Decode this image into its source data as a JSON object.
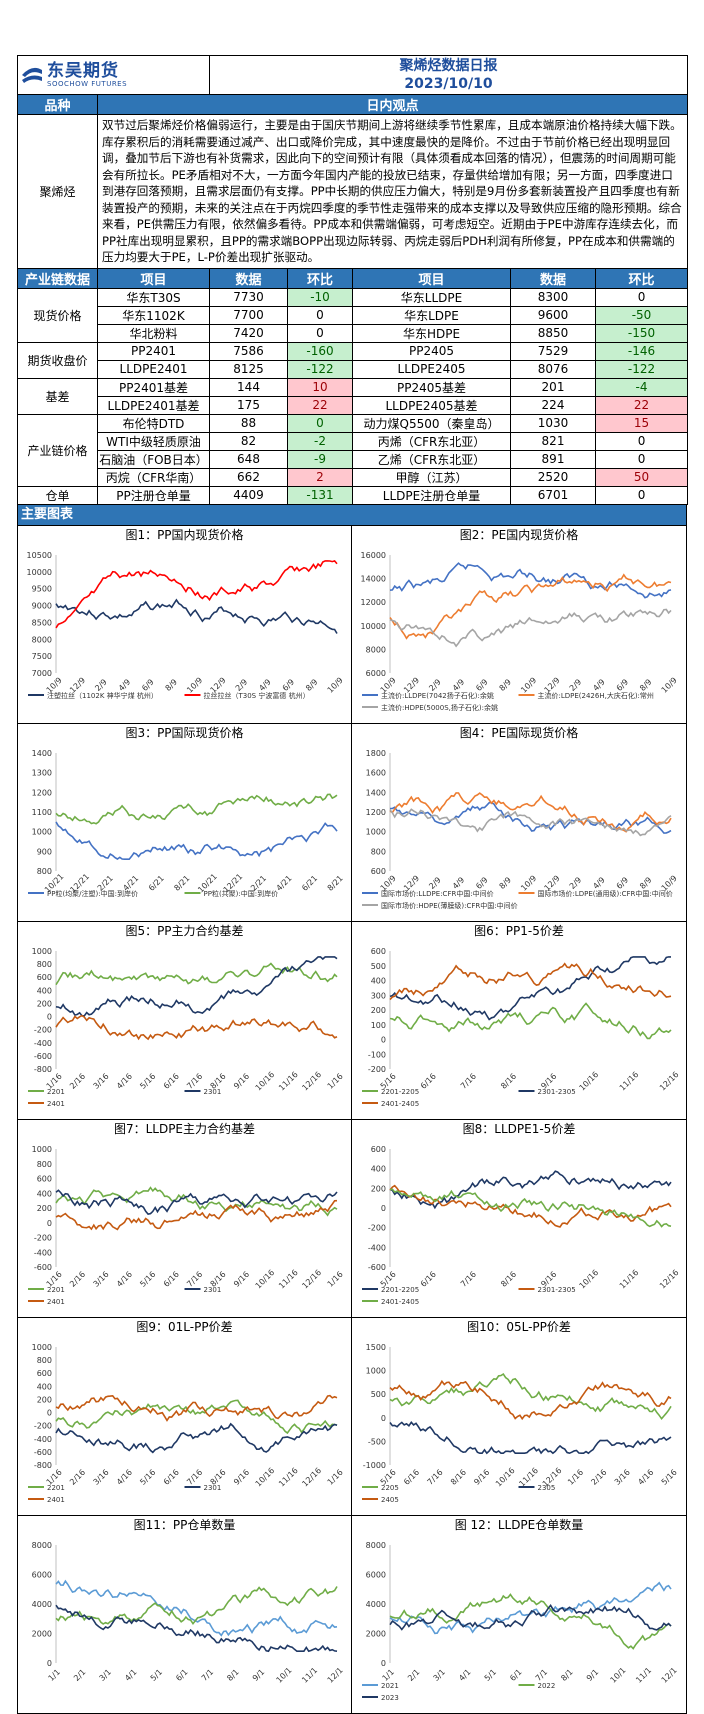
{
  "header": {
    "company_cn": "东吴期货",
    "company_en": "SOOCHOW FUTURES",
    "title": "聚烯烃数据日报",
    "date": "2023/10/10"
  },
  "view_header": {
    "variety": "品种",
    "view": "日内观点"
  },
  "view": {
    "variety": "聚烯烃",
    "text": "双节过后聚烯烃价格偏弱运行，主要是由于国庆节期间上游将继续季节性累库，且成本端原油价格持续大幅下跌。库存累积后的消耗需要通过减产、出口或降价完成，其中速度最快的是降价。不过由于节前价格已经出现明显回调，叠加节后下游也有补货需求，因此向下的空间预计有限（具体须看成本回落的情况），但震荡的时间周期可能会有所拉长。PE矛盾相对不大，一方面今年国内产能的投放已结束，存量供给增加有限；另一方面，四季度进口到港存回落预期，且需求层面仍有支撑。PP中长期的供应压力偏大，特别是9月份多套新装置投产且四季度也有新装置投产的预期，未来的关注点在于丙烷四季度的季节性走强带来的成本支撑以及导致供应压缩的隐形预期。综合来看，PE供需压力有限，依然偏多看待。PP成本和供需端偏弱，可考虑短空。近期由于PE中游库存连续去化，而PP社库出现明显累积，且PP的需求端BOPP出现边际转弱、丙烷走弱后PDH利润有所修复，PP在成本和供需端的压力均要大于PE，L-P价差出现扩张驱动。"
  },
  "data_header": {
    "c0": "产业链数据",
    "c1": "项目",
    "c2": "数据",
    "c3": "环比",
    "c4": "项目",
    "c5": "数据",
    "c6": "环比"
  },
  "groups": [
    {
      "name": "现货价格",
      "rows": [
        {
          "a": "华东T30S",
          "av": "7730",
          "ac": "-10",
          "acc": "green",
          "b": "华东LLDPE",
          "bv": "8300",
          "bc": "0",
          "bcc": ""
        },
        {
          "a": "华东1102K",
          "av": "7700",
          "ac": "0",
          "acc": "",
          "b": "华东LDPE",
          "bv": "9600",
          "bc": "-50",
          "bcc": "green"
        },
        {
          "a": "华北粉料",
          "av": "7420",
          "ac": "0",
          "acc": "",
          "b": "华东HDPE",
          "bv": "8850",
          "bc": "-150",
          "bcc": "green"
        }
      ]
    },
    {
      "name": "期货收盘价",
      "rows": [
        {
          "a": "PP2401",
          "av": "7586",
          "ac": "-160",
          "acc": "green",
          "b": "PP2405",
          "bv": "7529",
          "bc": "-146",
          "bcc": "green"
        },
        {
          "a": "LLDPE2401",
          "av": "8125",
          "ac": "-122",
          "acc": "green",
          "b": "LLDPE2405",
          "bv": "8076",
          "bc": "-122",
          "bcc": "green"
        }
      ]
    },
    {
      "name": "基差",
      "rows": [
        {
          "a": "PP2401基差",
          "av": "144",
          "ac": "10",
          "acc": "red",
          "b": "PP2405基差",
          "bv": "201",
          "bc": "-4",
          "bcc": "green"
        },
        {
          "a": "LLDPE2401基差",
          "av": "175",
          "ac": "22",
          "acc": "red",
          "b": "LLDPE2405基差",
          "bv": "224",
          "bc": "22",
          "bcc": "red"
        }
      ]
    },
    {
      "name": "产业链价格",
      "rows": [
        {
          "a": "布伦特DTD",
          "av": "88",
          "ac": "0",
          "acc": "green",
          "b": "动力煤Q5500（秦皇岛）",
          "bv": "1030",
          "bc": "15",
          "bcc": "red"
        },
        {
          "a": "WTI中级轻质原油",
          "av": "82",
          "ac": "-2",
          "acc": "green",
          "b": "丙烯（CFR东北亚）",
          "bv": "821",
          "bc": "0",
          "bcc": ""
        },
        {
          "a": "石脑油（FOB日本）",
          "av": "648",
          "ac": "-9",
          "acc": "green",
          "b": "乙烯（CFR东北亚）",
          "bv": "891",
          "bc": "0",
          "bcc": ""
        },
        {
          "a": "丙烷（CFR华南）",
          "av": "662",
          "ac": "2",
          "acc": "red",
          "b": "甲醇（江苏）",
          "bv": "2520",
          "bc": "50",
          "bcc": "red"
        }
      ]
    },
    {
      "name": "仓单",
      "rows": [
        {
          "a": "PP注册仓单量",
          "av": "4409",
          "ac": "-131",
          "acc": "green",
          "b": "LLDPE注册仓单量",
          "bv": "6701",
          "bc": "0",
          "bcc": ""
        }
      ]
    }
  ],
  "section_charts": "主要图表",
  "charts": [
    {
      "title": "图1：PP国内现货价格",
      "yticks": [
        "10500",
        "10000",
        "9500",
        "9000",
        "8500",
        "8000",
        "7500",
        "7000"
      ],
      "xticks": [
        "10/9",
        "12/9",
        "2/9",
        "4/9",
        "6/9",
        "8/9",
        "10/9",
        "12/9",
        "2/9",
        "4/9",
        "6/9",
        "8/9",
        "10/9"
      ],
      "legend": [
        "注塑拉丝（1102K 神华宁煤 杭州）",
        "拉丝拉丝（T30S 宁波富德 杭州）"
      ],
      "colors": [
        "#1f3864",
        "#ff0000"
      ]
    },
    {
      "title": "图2：PE国内现货价格",
      "yticks": [
        "16000",
        "14000",
        "12000",
        "10000",
        "8000",
        "6000"
      ],
      "xticks": [
        "10/9",
        "12/9",
        "2/9",
        "4/9",
        "6/9",
        "8/9",
        "10/9",
        "12/9",
        "2/9",
        "4/9",
        "6/9",
        "8/9",
        "10/9"
      ],
      "legend": [
        "主流价:LLDPE(7042扬子石化):余姚",
        "主流价:LDPE(2426H,大庆石化):常州",
        "主流价:HDPE(5000S,扬子石化):余姚"
      ],
      "colors": [
        "#4472c4",
        "#ed7d31",
        "#a5a5a5"
      ]
    },
    {
      "title": "图3：PP国际现货价格",
      "yticks": [
        "1400",
        "1300",
        "1200",
        "1100",
        "1000",
        "900",
        "800"
      ],
      "xticks": [
        "10/21",
        "12/21",
        "2/21",
        "4/21",
        "6/21",
        "8/21",
        "10/21",
        "12/21",
        "2/21",
        "4/21",
        "6/21",
        "8/21"
      ],
      "legend": [
        "PP粒(均聚/注塑):中国:到岸价",
        "PP粒(共聚):中国:到岸价"
      ],
      "colors": [
        "#4472c4",
        "#70ad47"
      ]
    },
    {
      "title": "图4：PE国际现货价格",
      "yticks": [
        "1800",
        "1600",
        "1400",
        "1200",
        "1000",
        "800",
        "600"
      ],
      "xticks": [
        "10/9",
        "12/9",
        "2/9",
        "4/9",
        "6/9",
        "8/9",
        "10/9",
        "12/9",
        "2/9",
        "4/9",
        "6/9",
        "8/9",
        "10/9"
      ],
      "legend": [
        "国际市场价:LLDPE:CFR中国:中间价",
        "国际市场价:LDPE(通用级):CFR中国:中间价",
        "国际市场价:HDPE(薄膜级):CFR中国:中间价"
      ],
      "colors": [
        "#4472c4",
        "#ed7d31",
        "#a5a5a5"
      ]
    },
    {
      "title": "图5：PP主力合约基差",
      "yticks": [
        "1000",
        "800",
        "600",
        "400",
        "200",
        "0",
        "-200",
        "-400",
        "-600",
        "-800"
      ],
      "xticks": [
        "1/16",
        "2/16",
        "3/16",
        "4/16",
        "5/16",
        "6/16",
        "7/16",
        "8/16",
        "9/16",
        "10/16",
        "11/16",
        "12/16",
        "1/16"
      ],
      "legend": [
        "2201",
        "2301",
        "2401"
      ],
      "colors": [
        "#70ad47",
        "#1f3864",
        "#c55a11"
      ]
    },
    {
      "title": "图6：PP1-5价差",
      "yticks": [
        "600",
        "500",
        "400",
        "300",
        "200",
        "100",
        "0",
        "-100",
        "-200"
      ],
      "xticks": [
        "5/16",
        "6/16",
        "7/16",
        "8/16",
        "9/16",
        "10/16",
        "11/16",
        "12/16"
      ],
      "legend": [
        "2201-2205",
        "2301-2305",
        "2401-2405"
      ],
      "colors": [
        "#70ad47",
        "#1f3864",
        "#c55a11"
      ]
    },
    {
      "title": "图7：LLDPE主力合约基差",
      "yticks": [
        "1000",
        "800",
        "600",
        "400",
        "200",
        "0",
        "-200",
        "-400",
        "-600"
      ],
      "xticks": [
        "1/16",
        "2/16",
        "3/16",
        "4/16",
        "5/16",
        "6/16",
        "7/16",
        "8/16",
        "9/16",
        "10/16",
        "11/16",
        "12/16",
        "1/16"
      ],
      "legend": [
        "2201",
        "2301",
        "2401"
      ],
      "colors": [
        "#70ad47",
        "#1f3864",
        "#c55a11"
      ]
    },
    {
      "title": "图8：LLDPE1-5价差",
      "yticks": [
        "600",
        "400",
        "200",
        "0",
        "-200",
        "-400",
        "-600"
      ],
      "xticks": [
        "5/16",
        "6/16",
        "7/16",
        "8/16",
        "9/16",
        "10/16",
        "11/16",
        "12/16"
      ],
      "legend": [
        "2201-2205",
        "2301-2305",
        "2401-2405"
      ],
      "colors": [
        "#1f3864",
        "#c55a11",
        "#70ad47"
      ]
    },
    {
      "title": "图9：01L-PP价差",
      "yticks": [
        "1000",
        "800",
        "600",
        "400",
        "200",
        "0",
        "-200",
        "-400",
        "-600",
        "-800"
      ],
      "xticks": [
        "1/16",
        "2/16",
        "3/16",
        "4/16",
        "5/16",
        "6/16",
        "7/16",
        "8/16",
        "9/16",
        "10/16",
        "11/16",
        "12/16",
        "1/16"
      ],
      "legend": [
        "2201",
        "2301",
        "2401"
      ],
      "colors": [
        "#70ad47",
        "#1f3864",
        "#c55a11"
      ]
    },
    {
      "title": "图10：05L-PP价差",
      "yticks": [
        "1500",
        "1000",
        "500",
        "0",
        "-500",
        "-1000"
      ],
      "xticks": [
        "5/16",
        "6/16",
        "7/16",
        "8/16",
        "9/16",
        "10/16",
        "11/16",
        "12/16",
        "1/16",
        "2/16",
        "3/16",
        "4/16",
        "5/16"
      ],
      "legend": [
        "2205",
        "2305",
        "2405"
      ],
      "colors": [
        "#70ad47",
        "#1f3864",
        "#c55a11"
      ]
    },
    {
      "title": "图11：PP仓单数量",
      "yticks": [
        "8000",
        "6000",
        "4000",
        "2000",
        "0"
      ],
      "xticks": [
        "1/1",
        "2/1",
        "3/1",
        "4/1",
        "5/1",
        "6/1",
        "7/1",
        "8/1",
        "9/1",
        "10/1",
        "11/1",
        "12/1"
      ],
      "legend": [],
      "colors": [
        "#5b9bd5",
        "#70ad47",
        "#1f3864"
      ]
    },
    {
      "title": "图 12：LLDPE仓单数量",
      "yticks": [
        "8000",
        "6000",
        "4000",
        "2000",
        "0"
      ],
      "xticks": [
        "1/1",
        "2/1",
        "3/1",
        "4/1",
        "5/1",
        "6/1",
        "7/1",
        "8/1",
        "9/1",
        "10/1",
        "11/1",
        "12/1"
      ],
      "legend": [
        "2021",
        "2022",
        "2023"
      ],
      "colors": [
        "#5b9bd5",
        "#70ad47",
        "#1f3864"
      ]
    }
  ]
}
